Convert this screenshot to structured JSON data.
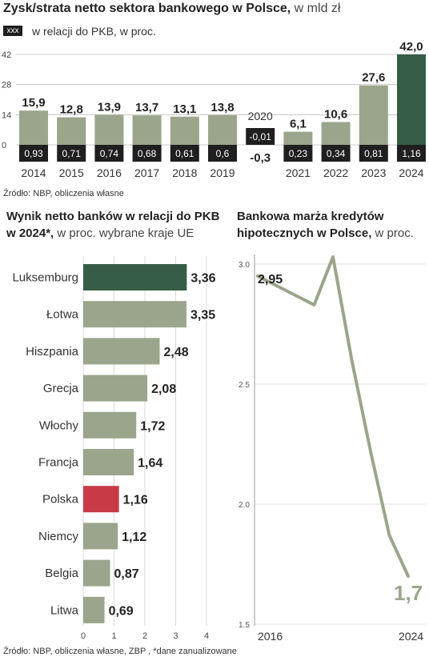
{
  "colors": {
    "bar": "#9aa58c",
    "bar_highlight": "#355d47",
    "bar_poland": "#c83a46",
    "label_box": "#1f1f1f",
    "line": "#9aa58c",
    "axis": "#9a9a9a"
  },
  "top_chart": {
    "title_bold": "Zysk/strata netto sektora bankowego w Polsce,",
    "title_normal": " w mld zł",
    "legend_box": "xxx",
    "legend_text": "w relacji do PKB,  w proc.",
    "source": "Źródło: NBP, obliczenia własne"
  },
  "left_chart": {
    "title_bold_1": "Wynik netto banków w relacji do PKB",
    "title_bold_2": "w 2024*,",
    "title_normal": " w proc. wybrane kraje UE",
    "source": "Źródło: NBP, obliczenia własne, ZBP , *dane zanualizowane"
  },
  "right_chart": {
    "title_bold_1": "Bankowa marża kredytów",
    "title_bold_2": "hipotecznych w Polsce,",
    "title_normal": " w proc."
  },
  "chart_data": [
    {
      "type": "bar",
      "title": "Zysk/strata netto sektora bankowego w Polsce, w mld zł",
      "categories": [
        "2014",
        "2015",
        "2016",
        "2017",
        "2018",
        "2019",
        "2020",
        "2021",
        "2022",
        "2023",
        "2024"
      ],
      "series": [
        {
          "values": [
            15.9,
            12.8,
            13.9,
            13.7,
            13.1,
            13.8,
            -0.3,
            6.1,
            10.6,
            27.6,
            42.0
          ],
          "labels": [
            "15,9",
            "12,8",
            "13,9",
            "13,7",
            "13,1",
            "13,8",
            "-0,3",
            "6,1",
            "10,6",
            "27,6",
            "42,0"
          ]
        },
        {
          "name": "w relacji do PKB,  w proc.",
          "values": [
            0.93,
            0.71,
            0.74,
            0.68,
            0.61,
            0.6,
            -0.01,
            0.23,
            0.34,
            0.81,
            1.16
          ],
          "labels": [
            "0,93",
            "0,71",
            "0,74",
            "0,68",
            "0,61",
            "0,6",
            "-0,01",
            "0,23",
            "0,34",
            "0,81",
            "1,16"
          ]
        }
      ],
      "yticks": [
        "0",
        "14",
        "28",
        "42"
      ],
      "ylim": [
        0,
        42
      ],
      "highlight": "2024"
    },
    {
      "type": "bar",
      "orientation": "horizontal",
      "title": "Wynik netto banków w relacji do PKB w 2024*, w proc. wybrane kraje UE",
      "categories": [
        "Luksemburg",
        "Łotwa",
        "Hiszpania",
        "Grecja",
        "Włochy",
        "Francja",
        "Polska",
        "Niemcy",
        "Belgia",
        "Litwa"
      ],
      "values": [
        3.36,
        3.35,
        2.48,
        2.08,
        1.72,
        1.64,
        1.16,
        1.12,
        0.87,
        0.69
      ],
      "labels": [
        "3,36",
        "3,35",
        "2,48",
        "2,08",
        "1,72",
        "1,64",
        "1,16",
        "1,12",
        "0,87",
        "0,69"
      ],
      "xticks": [
        "0",
        "1",
        "2",
        "3",
        "4"
      ],
      "xlim": [
        0,
        4.3
      ],
      "highlight": [
        "Luksemburg",
        "Polska"
      ]
    },
    {
      "type": "line",
      "title": "Bankowa marża kredytów hipotecznych w Polsce, w proc.",
      "x": [
        2016,
        2017,
        2018,
        2019,
        2020,
        2021,
        2022,
        2023,
        2024
      ],
      "y": [
        2.95,
        2.91,
        2.87,
        2.83,
        3.03,
        2.6,
        2.22,
        1.87,
        1.7
      ],
      "ylim": [
        1.5,
        3.0
      ],
      "yticks": [
        "3.0",
        "2.5",
        "2.0",
        "1.5"
      ],
      "xtick_labels": [
        "2016",
        "2024"
      ],
      "start_label": "2,95",
      "end_label": "1,7"
    }
  ]
}
